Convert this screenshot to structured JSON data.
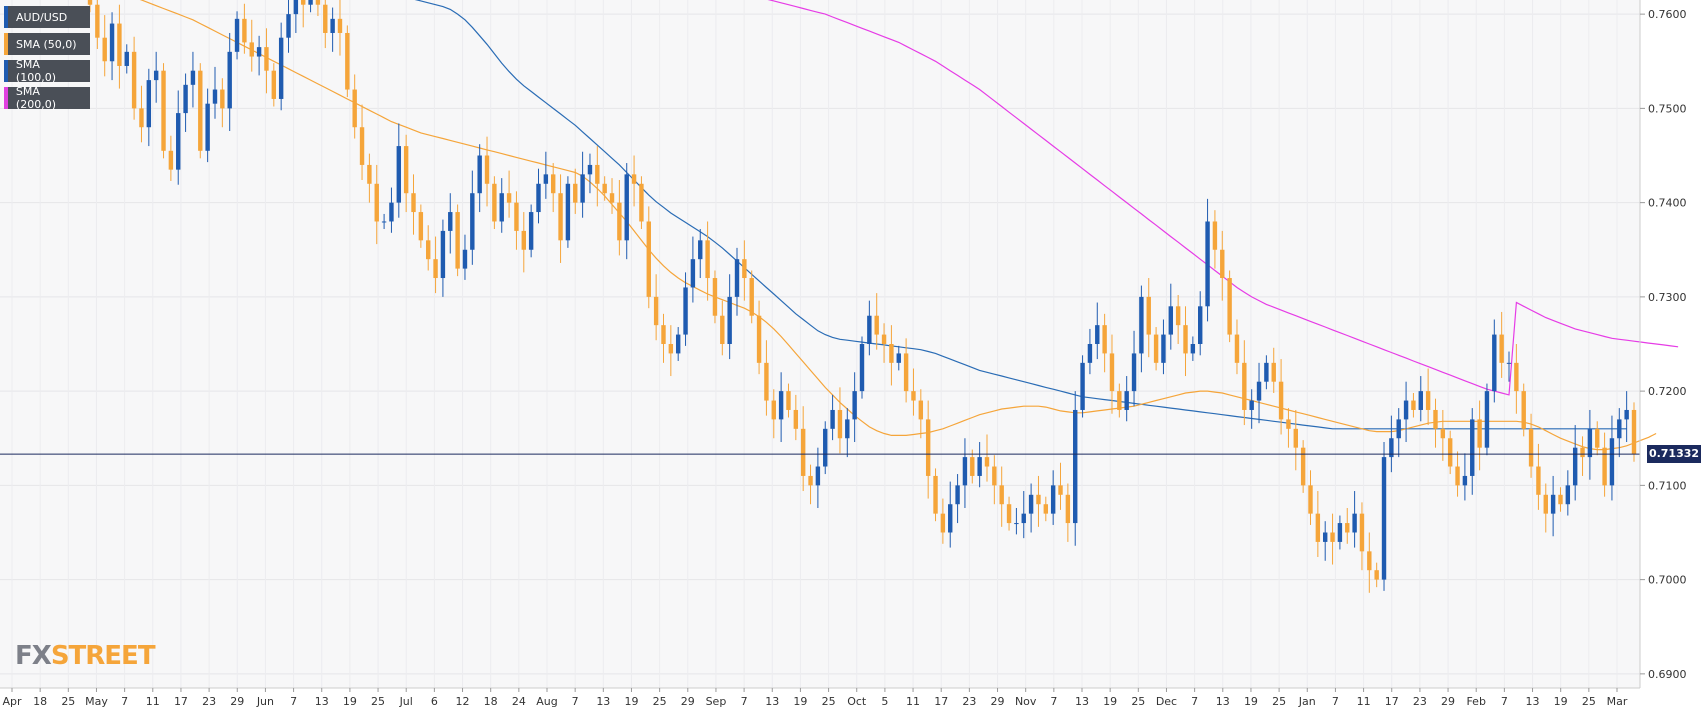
{
  "chart_data": {
    "type": "candlestick",
    "symbol": "AUD/USD",
    "ylim": [
      0.6885,
      0.7615
    ],
    "y_ticks": [
      "0.7600",
      "0.7500",
      "0.7400",
      "0.7300",
      "0.7200",
      "0.7100",
      "0.7000",
      "0.6900"
    ],
    "x_ticks": [
      "Apr",
      "18",
      "25",
      "May",
      "7",
      "11",
      "17",
      "23",
      "29",
      "Jun",
      "7",
      "13",
      "19",
      "25",
      "Jul",
      "6",
      "12",
      "18",
      "24",
      "Aug",
      "7",
      "13",
      "19",
      "25",
      "29",
      "Sep",
      "7",
      "13",
      "19",
      "25",
      "Oct",
      "5",
      "11",
      "17",
      "23",
      "29",
      "Nov",
      "7",
      "13",
      "19",
      "25",
      "Dec",
      "7",
      "13",
      "19",
      "25",
      "Jan",
      "7",
      "11",
      "17",
      "23",
      "29",
      "Feb",
      "7",
      "13",
      "19",
      "25",
      "Mar"
    ],
    "current_price": "0.71332",
    "current_price_value": 0.71332,
    "legend": [
      {
        "label": "AUD/USD",
        "color": "#1f5bb0"
      },
      {
        "label": "SMA (50,0)",
        "color": "#f5a53a"
      },
      {
        "label": "SMA (100,0)",
        "color": "#1f5bb0"
      },
      {
        "label": "SMA (200,0)",
        "color": "#e040e0"
      }
    ],
    "sma_colors": {
      "sma50": "#f5a53a",
      "sma100": "#2a6cb5",
      "sma200": "#e63ce6"
    },
    "candle_colors": {
      "up": "#1f5bb0",
      "down": "#f5a53a"
    },
    "closes": [
      0.761,
      0.7575,
      0.755,
      0.759,
      0.7545,
      0.756,
      0.75,
      0.748,
      0.753,
      0.754,
      0.7455,
      0.7435,
      0.7495,
      0.7525,
      0.754,
      0.7455,
      0.7505,
      0.752,
      0.75,
      0.756,
      0.7595,
      0.757,
      0.7555,
      0.7565,
      0.754,
      0.751,
      0.7575,
      0.76,
      0.763,
      0.761,
      0.764,
      0.761,
      0.758,
      0.7595,
      0.758,
      0.752,
      0.748,
      0.744,
      0.742,
      0.738,
      0.738,
      0.74,
      0.746,
      0.741,
      0.739,
      0.736,
      0.734,
      0.732,
      0.737,
      0.739,
      0.733,
      0.735,
      0.741,
      0.745,
      0.742,
      0.738,
      0.741,
      0.74,
      0.737,
      0.735,
      0.739,
      0.742,
      0.743,
      0.741,
      0.736,
      0.742,
      0.74,
      0.743,
      0.744,
      0.742,
      0.741,
      0.74,
      0.736,
      0.743,
      0.742,
      0.738,
      0.73,
      0.727,
      0.725,
      0.724,
      0.726,
      0.731,
      0.734,
      0.736,
      0.732,
      0.728,
      0.725,
      0.73,
      0.734,
      0.732,
      0.728,
      0.723,
      0.719,
      0.717,
      0.72,
      0.718,
      0.716,
      0.711,
      0.71,
      0.712,
      0.716,
      0.718,
      0.715,
      0.717,
      0.72,
      0.725,
      0.728,
      0.726,
      0.725,
      0.723,
      0.724,
      0.72,
      0.719,
      0.717,
      0.711,
      0.707,
      0.705,
      0.708,
      0.71,
      0.713,
      0.711,
      0.713,
      0.712,
      0.71,
      0.708,
      0.706,
      0.706,
      0.707,
      0.709,
      0.708,
      0.707,
      0.71,
      0.709,
      0.706,
      0.718,
      0.723,
      0.725,
      0.727,
      0.724,
      0.72,
      0.718,
      0.72,
      0.724,
      0.73,
      0.726,
      0.723,
      0.726,
      0.729,
      0.727,
      0.724,
      0.725,
      0.729,
      0.738,
      0.735,
      0.732,
      0.726,
      0.723,
      0.718,
      0.719,
      0.721,
      0.723,
      0.721,
      0.717,
      0.716,
      0.714,
      0.71,
      0.707,
      0.704,
      0.705,
      0.704,
      0.706,
      0.705,
      0.707,
      0.703,
      0.701,
      0.7,
      0.713,
      0.715,
      0.717,
      0.719,
      0.718,
      0.72,
      0.718,
      0.716,
      0.715,
      0.712,
      0.71,
      0.711,
      0.717,
      0.714,
      0.72,
      0.726,
      0.723,
      0.723,
      0.72,
      0.716,
      0.712,
      0.709,
      0.707,
      0.709,
      0.708,
      0.71,
      0.714,
      0.713,
      0.716,
      0.714,
      0.71,
      0.715,
      0.717,
      0.718,
      0.7133
    ],
    "sma50": [
      0.763,
      0.7629,
      0.7627,
      0.7625,
      0.7623,
      0.7621,
      0.7618,
      0.7615,
      0.7612,
      0.7609,
      0.7606,
      0.7603,
      0.76,
      0.7597,
      0.7594,
      0.759,
      0.7586,
      0.7582,
      0.7578,
      0.7574,
      0.757,
      0.7566,
      0.7562,
      0.7558,
      0.7554,
      0.755,
      0.7546,
      0.7542,
      0.7538,
      0.7534,
      0.753,
      0.7526,
      0.7522,
      0.7518,
      0.7514,
      0.751,
      0.7506,
      0.7502,
      0.7498,
      0.7494,
      0.749,
      0.7486,
      0.7483,
      0.748,
      0.7477,
      0.7474,
      0.7472,
      0.747,
      0.7468,
      0.7466,
      0.7464,
      0.7462,
      0.746,
      0.7458,
      0.7456,
      0.7454,
      0.7452,
      0.745,
      0.7448,
      0.7446,
      0.7444,
      0.7442,
      0.744,
      0.7438,
      0.7436,
      0.7434,
      0.7432,
      0.7428,
      0.7422,
      0.7415,
      0.7407,
      0.7398,
      0.7389,
      0.738,
      0.737,
      0.736,
      0.735,
      0.7341,
      0.7333,
      0.7326,
      0.732,
      0.7315,
      0.7311,
      0.7307,
      0.7303,
      0.73,
      0.7297,
      0.7294,
      0.7291,
      0.7288,
      0.7284,
      0.7279,
      0.7273,
      0.7266,
      0.7258,
      0.7249,
      0.724,
      0.7231,
      0.7222,
      0.7213,
      0.7204,
      0.7196,
      0.7188,
      0.7181,
      0.7174,
      0.7168,
      0.7162,
      0.7158,
      0.7155,
      0.7153,
      0.7153,
      0.7153,
      0.7154,
      0.7155,
      0.7156,
      0.7158,
      0.716,
      0.7163,
      0.7166,
      0.7169,
      0.7172,
      0.7175,
      0.7177,
      0.7179,
      0.7181,
      0.7182,
      0.7183,
      0.7184,
      0.7184,
      0.7184,
      0.7183,
      0.7181,
      0.7179,
      0.7178,
      0.7177,
      0.7177,
      0.7178,
      0.7179,
      0.718,
      0.7181,
      0.7182,
      0.7183,
      0.7184,
      0.7186,
      0.7188,
      0.719,
      0.7192,
      0.7194,
      0.7196,
      0.7198,
      0.7199,
      0.72,
      0.72,
      0.7199,
      0.7198,
      0.7196,
      0.7194,
      0.7192,
      0.719,
      0.7188,
      0.7186,
      0.7184,
      0.7182,
      0.718,
      0.7178,
      0.7176,
      0.7174,
      0.7172,
      0.717,
      0.7168,
      0.7166,
      0.7164,
      0.7162,
      0.716,
      0.7158,
      0.7157,
      0.7157,
      0.7157,
      0.7158,
      0.716,
      0.7162,
      0.7164,
      0.7166,
      0.7167,
      0.7168,
      0.7168,
      0.7168,
      0.7168,
      0.7168,
      0.7168,
      0.7168,
      0.7168,
      0.7168,
      0.7168,
      0.7168,
      0.7167,
      0.7165,
      0.7162,
      0.7158,
      0.7154,
      0.715,
      0.7147,
      0.7144,
      0.7141,
      0.7139,
      0.7138,
      0.7138,
      0.7139,
      0.714,
      0.7142,
      0.7145,
      0.7148,
      0.7151,
      0.7155
    ],
    "sma100": [
      0.77,
      0.7699,
      0.7698,
      0.7696,
      0.7695,
      0.7693,
      0.7692,
      0.769,
      0.7688,
      0.7686,
      0.7684,
      0.7682,
      0.768,
      0.7678,
      0.7676,
      0.7674,
      0.7672,
      0.767,
      0.7668,
      0.7666,
      0.7664,
      0.7662,
      0.766,
      0.7658,
      0.7656,
      0.7654,
      0.7652,
      0.765,
      0.7648,
      0.7646,
      0.7644,
      0.7642,
      0.764,
      0.7638,
      0.7636,
      0.7634,
      0.7632,
      0.763,
      0.7628,
      0.7626,
      0.7624,
      0.7622,
      0.762,
      0.7618,
      0.7616,
      0.7614,
      0.7612,
      0.761,
      0.7608,
      0.7605,
      0.76,
      0.7594,
      0.7586,
      0.7577,
      0.7568,
      0.7558,
      0.7548,
      0.7539,
      0.7531,
      0.7524,
      0.7518,
      0.7512,
      0.7506,
      0.75,
      0.7494,
      0.7488,
      0.7482,
      0.7475,
      0.7468,
      0.7461,
      0.7454,
      0.7447,
      0.744,
      0.7432,
      0.7424,
      0.7416,
      0.7408,
      0.7401,
      0.7395,
      0.7389,
      0.7384,
      0.7379,
      0.7374,
      0.7369,
      0.7364,
      0.7358,
      0.7352,
      0.7345,
      0.7338,
      0.7331,
      0.7324,
      0.7317,
      0.731,
      0.7303,
      0.7296,
      0.7289,
      0.7282,
      0.7276,
      0.727,
      0.7264,
      0.726,
      0.7257,
      0.7255,
      0.7254,
      0.7253,
      0.7252,
      0.7251,
      0.725,
      0.7249,
      0.7248,
      0.7247,
      0.7246,
      0.7245,
      0.7244,
      0.7242,
      0.724,
      0.7237,
      0.7234,
      0.7231,
      0.7228,
      0.7225,
      0.7222,
      0.722,
      0.7218,
      0.7216,
      0.7214,
      0.7212,
      0.721,
      0.7208,
      0.7206,
      0.7204,
      0.7202,
      0.72,
      0.7198,
      0.7196,
      0.7194,
      0.7193,
      0.7192,
      0.7191,
      0.719,
      0.7189,
      0.7188,
      0.7187,
      0.7186,
      0.7185,
      0.7184,
      0.7183,
      0.7182,
      0.7181,
      0.718,
      0.7179,
      0.7178,
      0.7177,
      0.7176,
      0.7175,
      0.7174,
      0.7173,
      0.7172,
      0.7171,
      0.717,
      0.7169,
      0.7168,
      0.7167,
      0.7166,
      0.7165,
      0.7164,
      0.7163,
      0.7162,
      0.7161,
      0.716,
      0.716,
      0.716,
      0.716,
      0.716,
      0.716,
      0.716,
      0.716,
      0.716,
      0.716,
      0.716,
      0.716,
      0.716,
      0.716,
      0.716,
      0.716,
      0.716,
      0.716,
      0.716,
      0.716,
      0.716,
      0.716,
      0.716,
      0.716,
      0.716,
      0.716,
      0.716,
      0.716,
      0.716,
      0.716,
      0.716,
      0.716,
      0.716,
      0.716,
      0.716,
      0.716,
      0.716,
      0.716,
      0.716,
      0.716,
      0.716
    ],
    "sma200": [
      0.78,
      0.7798,
      0.7796,
      0.7794,
      0.7792,
      0.779,
      0.7788,
      0.7786,
      0.7784,
      0.7782,
      0.778,
      0.7778,
      0.7776,
      0.7774,
      0.7772,
      0.777,
      0.7768,
      0.7766,
      0.7764,
      0.7762,
      0.776,
      0.7758,
      0.7756,
      0.7754,
      0.7752,
      0.775,
      0.7748,
      0.7746,
      0.7744,
      0.7742,
      0.774,
      0.7738,
      0.7736,
      0.7734,
      0.7732,
      0.773,
      0.7728,
      0.7726,
      0.7724,
      0.7722,
      0.772,
      0.7718,
      0.7716,
      0.7714,
      0.7712,
      0.771,
      0.7708,
      0.7706,
      0.7704,
      0.7702,
      0.77,
      0.7698,
      0.7696,
      0.7694,
      0.7692,
      0.769,
      0.7688,
      0.7686,
      0.7684,
      0.7682,
      0.768,
      0.7678,
      0.7676,
      0.7674,
      0.7672,
      0.767,
      0.7668,
      0.7666,
      0.7664,
      0.7662,
      0.766,
      0.7658,
      0.7656,
      0.7654,
      0.7652,
      0.765,
      0.7648,
      0.7646,
      0.7644,
      0.7642,
      0.764,
      0.7638,
      0.7636,
      0.7634,
      0.7632,
      0.763,
      0.7628,
      0.7626,
      0.7624,
      0.7622,
      0.762,
      0.7618,
      0.7616,
      0.7614,
      0.7612,
      0.761,
      0.7608,
      0.7606,
      0.7604,
      0.7602,
      0.76,
      0.7597,
      0.7594,
      0.7591,
      0.7588,
      0.7585,
      0.7582,
      0.7579,
      0.7576,
      0.7573,
      0.757,
      0.7566,
      0.7562,
      0.7558,
      0.7554,
      0.755,
      0.7545,
      0.754,
      0.7535,
      0.753,
      0.7525,
      0.752,
      0.7514,
      0.7508,
      0.7502,
      0.7496,
      0.749,
      0.7484,
      0.7478,
      0.7472,
      0.7466,
      0.746,
      0.7454,
      0.7448,
      0.7442,
      0.7436,
      0.743,
      0.7424,
      0.7418,
      0.7412,
      0.7406,
      0.74,
      0.7394,
      0.7388,
      0.7382,
      0.7376,
      0.737,
      0.7364,
      0.7358,
      0.7352,
      0.7346,
      0.734,
      0.7334,
      0.7328,
      0.7322,
      0.7316,
      0.731,
      0.7305,
      0.73,
      0.7296,
      0.7292,
      0.7289,
      0.7286,
      0.7283,
      0.728,
      0.7277,
      0.7274,
      0.7271,
      0.7268,
      0.7265,
      0.7262,
      0.7259,
      0.7256,
      0.7253,
      0.725,
      0.7247,
      0.7244,
      0.7241,
      0.7238,
      0.7235,
      0.7232,
      0.7229,
      0.7226,
      0.7223,
      0.722,
      0.7217,
      0.7214,
      0.7211,
      0.7208,
      0.7205,
      0.7202,
      0.72,
      0.7198,
      0.7196,
      0.7294,
      0.729,
      0.7286,
      0.7282,
      0.7278,
      0.7275,
      0.7272,
      0.7269,
      0.7266,
      0.7264,
      0.7262,
      0.726,
      0.7258,
      0.7256,
      0.7255,
      0.7254,
      0.7253,
      0.7252,
      0.7251,
      0.725,
      0.7249,
      0.7248,
      0.7247
    ]
  },
  "watermark": {
    "part1": "FX",
    "part2": "STREET"
  }
}
